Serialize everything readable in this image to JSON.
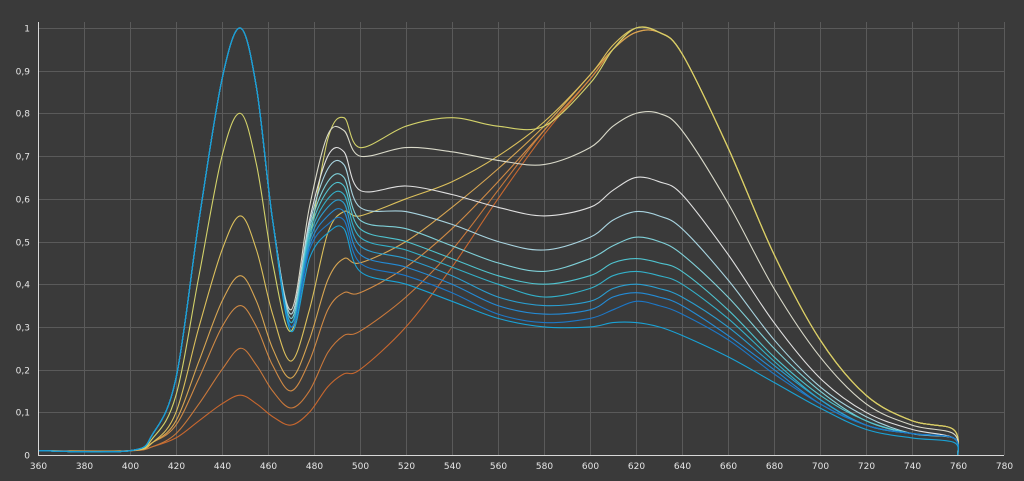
{
  "chart_data": {
    "type": "line",
    "title": "",
    "xlabel": "",
    "ylabel": "",
    "xlim": [
      360,
      780
    ],
    "ylim": [
      0,
      1
    ],
    "grid": true,
    "legend": "none",
    "x_ticks": [
      "360",
      "380",
      "400",
      "420",
      "440",
      "460",
      "480",
      "500",
      "520",
      "540",
      "560",
      "580",
      "600",
      "620",
      "640",
      "660",
      "680",
      "700",
      "720",
      "740",
      "760",
      "780"
    ],
    "y_ticks": [
      "0",
      "0,1",
      "0,2",
      "0,3",
      "0,4",
      "0,5",
      "0,6",
      "0,7",
      "0,8",
      "0,9",
      "1"
    ],
    "x": [
      360,
      400,
      410,
      420,
      430,
      440,
      448,
      455,
      462,
      470,
      478,
      486,
      493,
      500,
      520,
      540,
      560,
      580,
      600,
      610,
      620,
      630,
      640,
      660,
      680,
      700,
      720,
      740,
      758,
      760
    ],
    "series": [
      {
        "color": "#c8672e",
        "values": [
          0.01,
          0.01,
          0.02,
          0.04,
          0.08,
          0.12,
          0.14,
          0.12,
          0.09,
          0.07,
          0.1,
          0.16,
          0.19,
          0.2,
          0.3,
          0.44,
          0.6,
          0.75,
          0.88,
          0.95,
          1.0,
          0.99,
          0.94,
          0.72,
          0.47,
          0.27,
          0.14,
          0.08,
          0.06,
          0.0
        ]
      },
      {
        "color": "#c9783a",
        "values": [
          0.01,
          0.01,
          0.02,
          0.05,
          0.12,
          0.2,
          0.25,
          0.21,
          0.15,
          0.11,
          0.15,
          0.24,
          0.28,
          0.29,
          0.37,
          0.48,
          0.62,
          0.76,
          0.88,
          0.95,
          0.99,
          0.99,
          0.94,
          0.72,
          0.47,
          0.27,
          0.14,
          0.08,
          0.06,
          0.0
        ]
      },
      {
        "color": "#d08a45",
        "values": [
          0.01,
          0.01,
          0.03,
          0.07,
          0.18,
          0.3,
          0.35,
          0.3,
          0.21,
          0.15,
          0.22,
          0.34,
          0.38,
          0.38,
          0.44,
          0.53,
          0.64,
          0.76,
          0.88,
          0.95,
          0.99,
          0.99,
          0.94,
          0.72,
          0.47,
          0.27,
          0.14,
          0.08,
          0.06,
          0.0
        ]
      },
      {
        "color": "#d7a552",
        "values": [
          0.01,
          0.01,
          0.03,
          0.08,
          0.22,
          0.36,
          0.42,
          0.36,
          0.25,
          0.18,
          0.27,
          0.41,
          0.46,
          0.45,
          0.5,
          0.58,
          0.67,
          0.77,
          0.89,
          0.95,
          0.99,
          0.99,
          0.94,
          0.72,
          0.47,
          0.27,
          0.14,
          0.08,
          0.06,
          0.0
        ]
      },
      {
        "color": "#dcc05c",
        "values": [
          0.01,
          0.01,
          0.03,
          0.1,
          0.3,
          0.48,
          0.56,
          0.48,
          0.33,
          0.22,
          0.34,
          0.52,
          0.57,
          0.56,
          0.6,
          0.64,
          0.7,
          0.78,
          0.89,
          0.96,
          1.0,
          0.99,
          0.94,
          0.72,
          0.47,
          0.27,
          0.14,
          0.08,
          0.06,
          0.0
        ]
      },
      {
        "color": "#d3d26a",
        "values": [
          0.01,
          0.01,
          0.04,
          0.14,
          0.42,
          0.7,
          0.8,
          0.68,
          0.45,
          0.29,
          0.5,
          0.74,
          0.79,
          0.72,
          0.77,
          0.79,
          0.77,
          0.77,
          0.87,
          0.95,
          1.0,
          0.99,
          0.94,
          0.72,
          0.47,
          0.27,
          0.14,
          0.08,
          0.06,
          0.0
        ]
      },
      {
        "color": "#d9d9c9",
        "values": [
          0.01,
          0.01,
          0.05,
          0.18,
          0.55,
          0.88,
          1.0,
          0.86,
          0.55,
          0.34,
          0.58,
          0.75,
          0.76,
          0.7,
          0.72,
          0.71,
          0.69,
          0.68,
          0.72,
          0.77,
          0.8,
          0.8,
          0.76,
          0.59,
          0.39,
          0.23,
          0.12,
          0.07,
          0.05,
          0.0
        ]
      },
      {
        "color": "#e0e0e0",
        "values": [
          0.01,
          0.01,
          0.05,
          0.18,
          0.55,
          0.88,
          1.0,
          0.86,
          0.55,
          0.33,
          0.55,
          0.7,
          0.71,
          0.62,
          0.63,
          0.61,
          0.58,
          0.56,
          0.58,
          0.62,
          0.65,
          0.64,
          0.61,
          0.47,
          0.31,
          0.18,
          0.1,
          0.06,
          0.04,
          0.0
        ]
      },
      {
        "color": "#a9d4e0",
        "values": [
          0.01,
          0.01,
          0.05,
          0.18,
          0.55,
          0.88,
          1.0,
          0.86,
          0.55,
          0.33,
          0.54,
          0.67,
          0.68,
          0.58,
          0.57,
          0.54,
          0.5,
          0.48,
          0.51,
          0.55,
          0.57,
          0.56,
          0.53,
          0.41,
          0.27,
          0.16,
          0.09,
          0.05,
          0.04,
          0.0
        ]
      },
      {
        "color": "#7fd0d8",
        "values": [
          0.01,
          0.01,
          0.05,
          0.18,
          0.55,
          0.88,
          1.0,
          0.86,
          0.55,
          0.32,
          0.53,
          0.64,
          0.65,
          0.55,
          0.53,
          0.49,
          0.45,
          0.43,
          0.46,
          0.49,
          0.51,
          0.5,
          0.47,
          0.37,
          0.25,
          0.15,
          0.08,
          0.05,
          0.04,
          0.0
        ]
      },
      {
        "color": "#4fc3cf",
        "values": [
          0.01,
          0.01,
          0.05,
          0.18,
          0.55,
          0.88,
          1.0,
          0.86,
          0.55,
          0.31,
          0.52,
          0.62,
          0.63,
          0.53,
          0.5,
          0.46,
          0.42,
          0.4,
          0.42,
          0.45,
          0.46,
          0.45,
          0.43,
          0.34,
          0.23,
          0.14,
          0.08,
          0.05,
          0.04,
          0.0
        ]
      },
      {
        "color": "#33b0c9",
        "values": [
          0.01,
          0.01,
          0.05,
          0.18,
          0.55,
          0.88,
          1.0,
          0.86,
          0.55,
          0.31,
          0.51,
          0.6,
          0.61,
          0.51,
          0.48,
          0.44,
          0.4,
          0.37,
          0.39,
          0.42,
          0.43,
          0.42,
          0.4,
          0.32,
          0.22,
          0.13,
          0.07,
          0.05,
          0.04,
          0.0
        ]
      },
      {
        "color": "#2a9ed0",
        "values": [
          0.01,
          0.01,
          0.05,
          0.18,
          0.55,
          0.88,
          1.0,
          0.86,
          0.55,
          0.3,
          0.5,
          0.58,
          0.59,
          0.49,
          0.46,
          0.42,
          0.37,
          0.35,
          0.36,
          0.39,
          0.4,
          0.39,
          0.37,
          0.3,
          0.21,
          0.13,
          0.07,
          0.05,
          0.04,
          0.0
        ]
      },
      {
        "color": "#238bd6",
        "values": [
          0.01,
          0.01,
          0.05,
          0.18,
          0.55,
          0.88,
          1.0,
          0.86,
          0.55,
          0.3,
          0.49,
          0.56,
          0.57,
          0.47,
          0.44,
          0.4,
          0.35,
          0.33,
          0.34,
          0.37,
          0.38,
          0.37,
          0.35,
          0.28,
          0.2,
          0.12,
          0.07,
          0.05,
          0.04,
          0.0
        ]
      },
      {
        "color": "#1c78c8",
        "values": [
          0.01,
          0.01,
          0.05,
          0.18,
          0.55,
          0.88,
          1.0,
          0.86,
          0.55,
          0.3,
          0.48,
          0.54,
          0.55,
          0.45,
          0.42,
          0.38,
          0.33,
          0.31,
          0.32,
          0.34,
          0.36,
          0.35,
          0.33,
          0.27,
          0.19,
          0.12,
          0.07,
          0.05,
          0.04,
          0.0
        ]
      },
      {
        "color": "#19a2d6",
        "values": [
          0.01,
          0.01,
          0.05,
          0.18,
          0.55,
          0.88,
          1.0,
          0.86,
          0.55,
          0.29,
          0.46,
          0.52,
          0.53,
          0.43,
          0.4,
          0.36,
          0.32,
          0.3,
          0.3,
          0.31,
          0.31,
          0.3,
          0.28,
          0.23,
          0.17,
          0.11,
          0.06,
          0.04,
          0.03,
          0.0
        ]
      }
    ]
  }
}
